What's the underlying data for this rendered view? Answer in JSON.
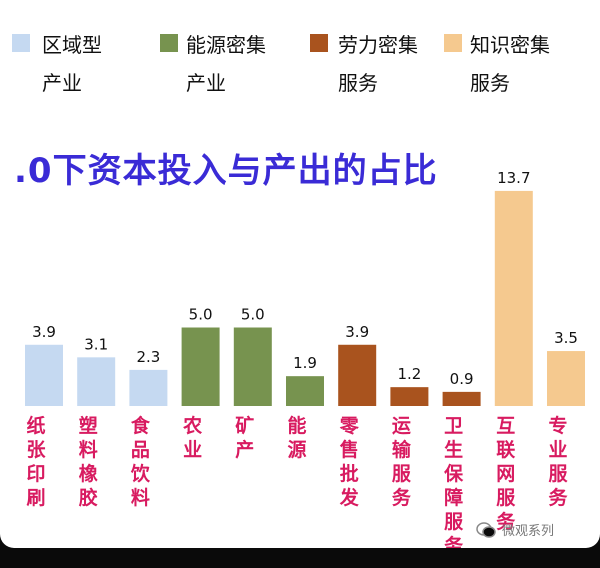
{
  "legend": [
    {
      "label_lines": [
        "区域型",
        "产业"
      ],
      "color": "#c5d9f1"
    },
    {
      "label_lines": [
        "能源密集",
        "产业"
      ],
      "color": "#77934f"
    },
    {
      "label_lines": [
        "劳力密集",
        "服务"
      ],
      "color": "#a9531e"
    },
    {
      "label_lines": [
        "知识密集",
        "服务"
      ],
      "color": "#f5c98f"
    }
  ],
  "title": ".0下资本投入与产出的占比",
  "watermark": "微观系列",
  "chart_data": {
    "type": "bar",
    "title": ".0下资本投入与产出的占比",
    "categories": [
      "纸张印刷",
      "塑料橡胶",
      "食品饮料",
      "农业",
      "矿产",
      "能源",
      "零售批发",
      "运输服务",
      "卫生保障服务",
      "互联网服务",
      "专业服务"
    ],
    "values": [
      3.9,
      3.1,
      2.3,
      5.0,
      5.0,
      1.9,
      3.9,
      1.2,
      0.9,
      13.7,
      3.5
    ],
    "value_labels": [
      "3.9",
      "3.1",
      "2.3",
      "5.0",
      "5.0",
      "1.9",
      "3.9",
      "1.2",
      "0.9",
      "13.7",
      "3.5"
    ],
    "groups": [
      "区域型产业",
      "区域型产业",
      "区域型产业",
      "能源密集产业",
      "能源密集产业",
      "能源密集产业",
      "劳力密集服务",
      "劳力密集服务",
      "劳力密集服务",
      "知识密集服务",
      "知识密集服务"
    ],
    "colors": [
      "#c5d9f1",
      "#c5d9f1",
      "#c5d9f1",
      "#77934f",
      "#77934f",
      "#77934f",
      "#a9531e",
      "#a9531e",
      "#a9531e",
      "#f5c98f",
      "#f5c98f"
    ],
    "grid": false,
    "legend_position": "top"
  }
}
